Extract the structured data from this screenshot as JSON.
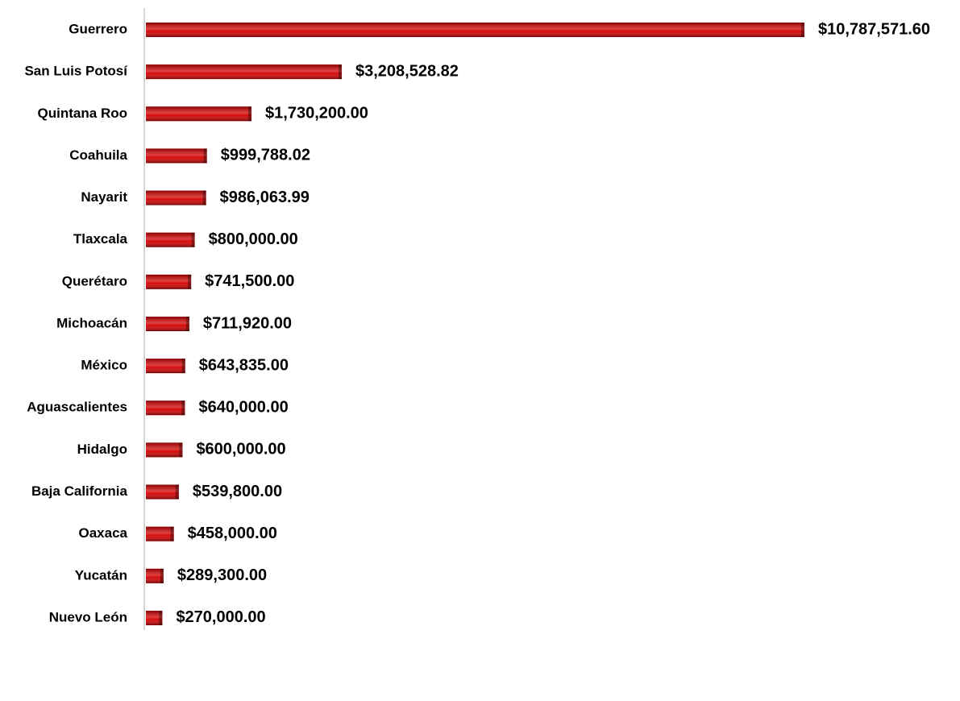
{
  "chart_data": {
    "type": "bar",
    "orientation": "horizontal",
    "color": "#d40000",
    "categories": [
      "Guerrero",
      "San Luis Potosí",
      "Quintana Roo",
      "Coahuila",
      "Nayarit",
      "Tlaxcala",
      "Querétaro",
      "Michoacán",
      "México",
      "Aguascalientes",
      "Hidalgo",
      "Baja California",
      "Oaxaca",
      "Yucatán",
      "Nuevo León"
    ],
    "values": [
      10787571.6,
      3208528.82,
      1730200,
      999788.02,
      986063.99,
      800000,
      741500,
      711920,
      643835,
      640000,
      600000,
      539800,
      458000,
      289300,
      270000
    ],
    "value_labels": [
      "$10,787,571.60",
      "$3,208,528.82",
      "$1,730,200.00",
      "$999,788.02",
      "$986,063.99",
      "$800,000.00",
      "$741,500.00",
      "$711,920.00",
      "$643,835.00",
      "$640,000.00",
      "$600,000.00",
      "$539,800.00",
      "$458,000.00",
      "$289,300.00",
      "$270,000.00"
    ]
  }
}
